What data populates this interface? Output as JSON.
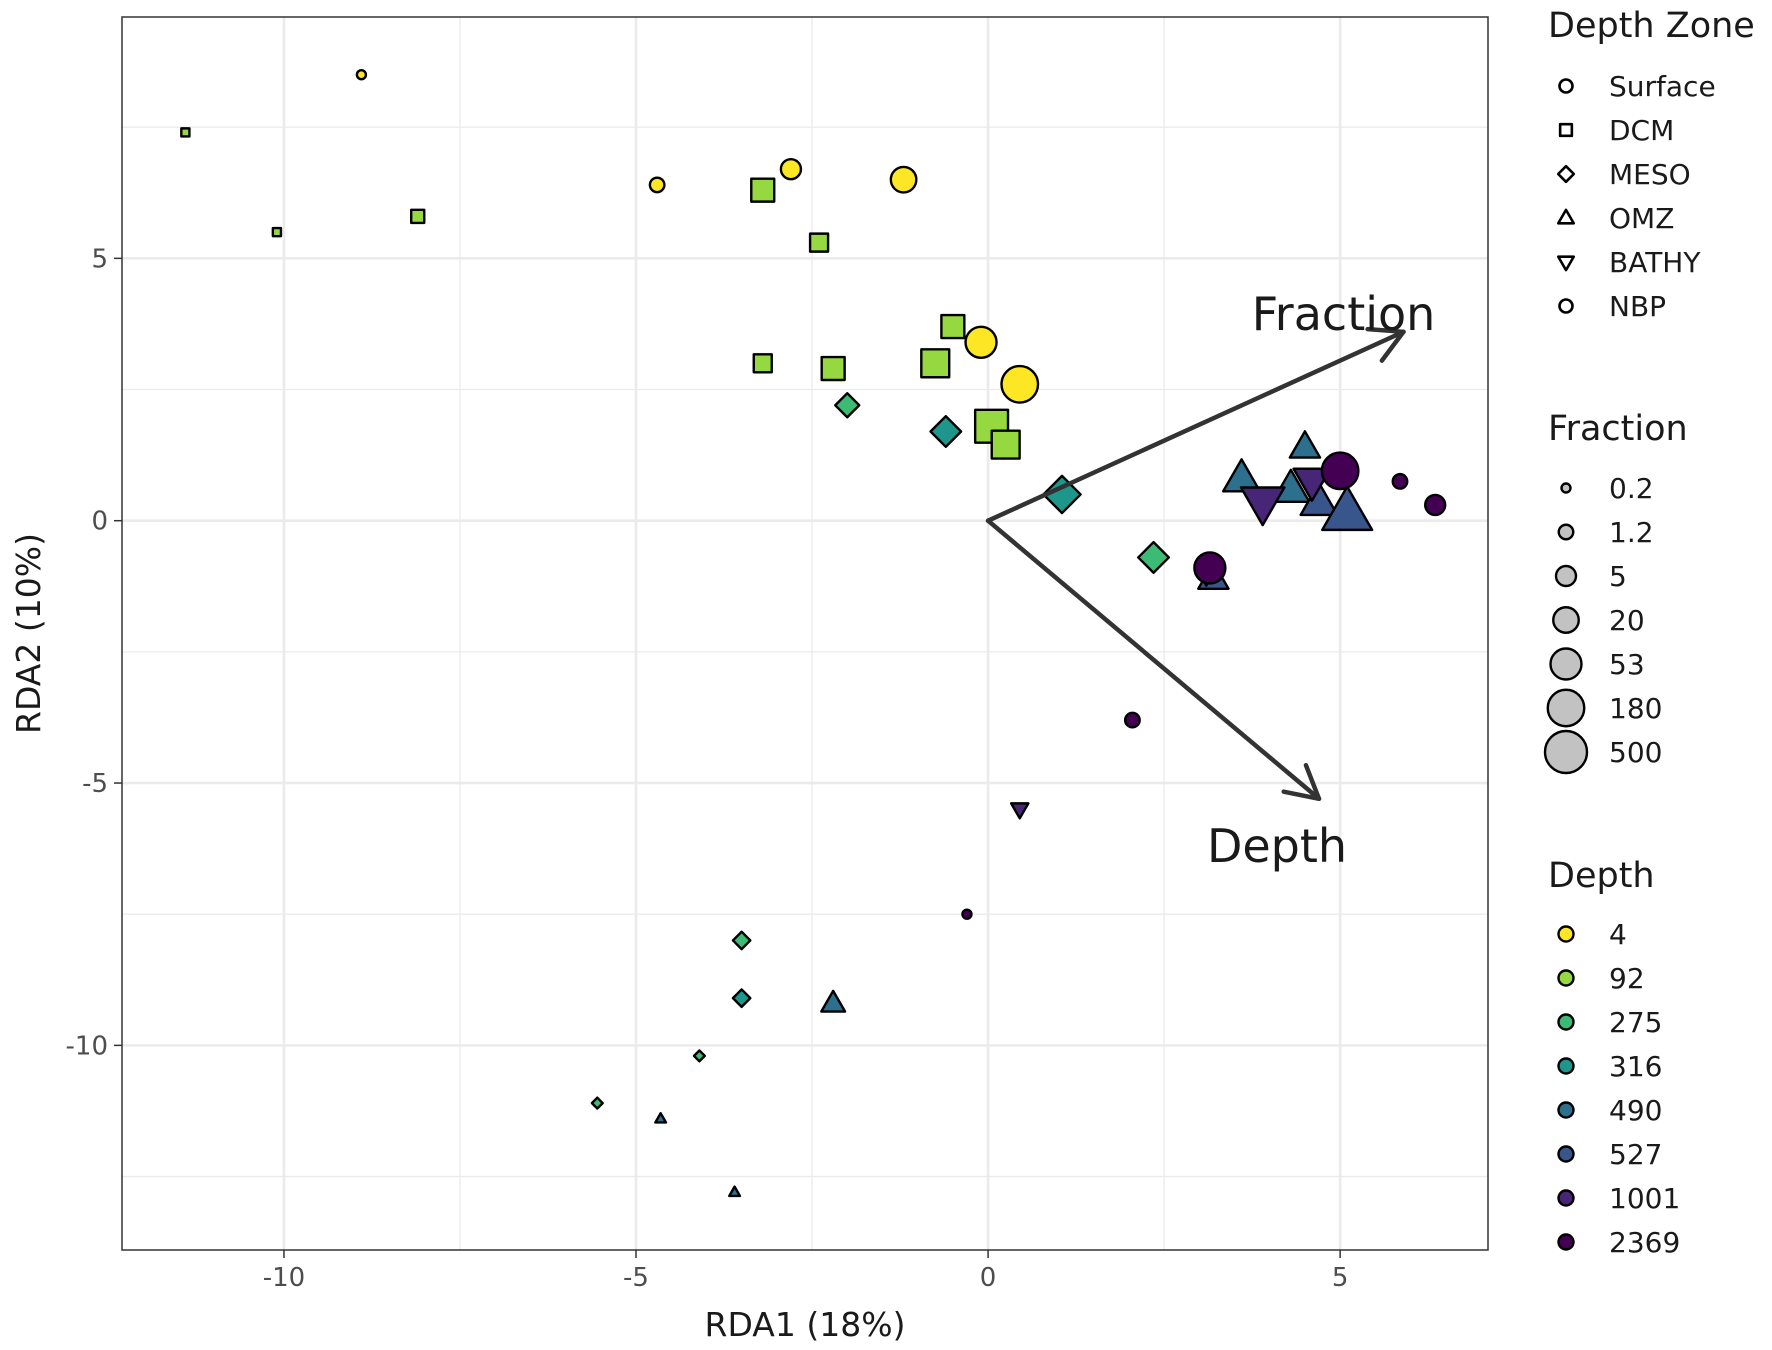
{
  "chart_data": {
    "type": "scatter",
    "title": "",
    "xlabel": "RDA1 (18%)",
    "ylabel": "RDA2 (10%)",
    "xlim": [
      -12.3,
      7.1
    ],
    "ylim": [
      -13.9,
      9.6
    ],
    "xticks": [
      -10,
      -5,
      0,
      5
    ],
    "yticks": [
      5,
      0,
      -5,
      -10
    ],
    "xtick_labels": [
      "-10",
      "-5",
      "0",
      "5"
    ],
    "ytick_labels": [
      "5",
      "0",
      "-5",
      "-10"
    ],
    "grid": true,
    "vectors": [
      {
        "name": "Fraction",
        "x": 5.9,
        "y": 3.6
      },
      {
        "name": "Depth",
        "x": 4.7,
        "y": -5.3
      }
    ],
    "legends": {
      "depth_zone": {
        "title": "Depth Zone",
        "items": [
          {
            "label": "Surface",
            "shape": "circle"
          },
          {
            "label": "DCM",
            "shape": "square"
          },
          {
            "label": "MESO",
            "shape": "diamond"
          },
          {
            "label": "OMZ",
            "shape": "triangle-up"
          },
          {
            "label": "BATHY",
            "shape": "triangle-down"
          },
          {
            "label": "NBP",
            "shape": "circle"
          }
        ]
      },
      "fraction": {
        "title": "Fraction",
        "items": [
          {
            "label": "0.2",
            "size": 0.2
          },
          {
            "label": "1.2",
            "size": 1.2
          },
          {
            "label": "5",
            "size": 5
          },
          {
            "label": "20",
            "size": 20
          },
          {
            "label": "53",
            "size": 53
          },
          {
            "label": "180",
            "size": 180
          },
          {
            "label": "500",
            "size": 500
          }
        ]
      },
      "depth": {
        "title": "Depth",
        "items": [
          {
            "label": "4",
            "value": 4,
            "color": "#FDE725"
          },
          {
            "label": "92",
            "value": 92,
            "color": "#95D840"
          },
          {
            "label": "275",
            "value": 275,
            "color": "#3CBB75"
          },
          {
            "label": "316",
            "value": 316,
            "color": "#1F968B"
          },
          {
            "label": "490",
            "value": 490,
            "color": "#2D708E"
          },
          {
            "label": "527",
            "value": 527,
            "color": "#39568C"
          },
          {
            "label": "1001",
            "value": 1001,
            "color": "#482677"
          },
          {
            "label": "2369",
            "value": 2369,
            "color": "#440154"
          }
        ]
      }
    },
    "points": [
      {
        "x": -8.9,
        "y": 8.5,
        "zone": "Surface",
        "fraction": 0.2,
        "depth": 4
      },
      {
        "x": -4.7,
        "y": 6.4,
        "zone": "Surface",
        "fraction": 1.2,
        "depth": 4
      },
      {
        "x": -2.8,
        "y": 6.7,
        "zone": "Surface",
        "fraction": 5,
        "depth": 4
      },
      {
        "x": -1.2,
        "y": 6.5,
        "zone": "Surface",
        "fraction": 20,
        "depth": 4
      },
      {
        "x": -0.1,
        "y": 3.4,
        "zone": "Surface",
        "fraction": 53,
        "depth": 4
      },
      {
        "x": 0.45,
        "y": 2.6,
        "zone": "Surface",
        "fraction": 180,
        "depth": 4
      },
      {
        "x": -11.4,
        "y": 7.4,
        "zone": "DCM",
        "fraction": 0.2,
        "depth": 92
      },
      {
        "x": -10.1,
        "y": 5.5,
        "zone": "DCM",
        "fraction": 0.2,
        "depth": 92
      },
      {
        "x": -8.1,
        "y": 5.8,
        "zone": "DCM",
        "fraction": 1.2,
        "depth": 92
      },
      {
        "x": -3.2,
        "y": 6.3,
        "zone": "DCM",
        "fraction": 20,
        "depth": 92
      },
      {
        "x": -2.4,
        "y": 5.3,
        "zone": "DCM",
        "fraction": 5,
        "depth": 92
      },
      {
        "x": -3.2,
        "y": 3.0,
        "zone": "DCM",
        "fraction": 5,
        "depth": 92
      },
      {
        "x": -2.2,
        "y": 2.9,
        "zone": "DCM",
        "fraction": 20,
        "depth": 92
      },
      {
        "x": -0.5,
        "y": 3.7,
        "zone": "DCM",
        "fraction": 20,
        "depth": 92
      },
      {
        "x": -0.75,
        "y": 3.0,
        "zone": "DCM",
        "fraction": 53,
        "depth": 92
      },
      {
        "x": 0.05,
        "y": 1.8,
        "zone": "DCM",
        "fraction": 180,
        "depth": 92
      },
      {
        "x": 0.25,
        "y": 1.45,
        "zone": "DCM",
        "fraction": 53,
        "depth": 92
      },
      {
        "x": -2.0,
        "y": 2.2,
        "zone": "MESO",
        "fraction": 5,
        "depth": 275
      },
      {
        "x": -0.6,
        "y": 1.7,
        "zone": "MESO",
        "fraction": 20,
        "depth": 316
      },
      {
        "x": 1.05,
        "y": 0.5,
        "zone": "MESO",
        "fraction": 53,
        "depth": 316
      },
      {
        "x": 2.35,
        "y": -0.7,
        "zone": "MESO",
        "fraction": 20,
        "depth": 275
      },
      {
        "x": -3.5,
        "y": -8.0,
        "zone": "MESO",
        "fraction": 1.2,
        "depth": 275
      },
      {
        "x": -3.5,
        "y": -9.1,
        "zone": "MESO",
        "fraction": 1.2,
        "depth": 316
      },
      {
        "x": -4.1,
        "y": -10.2,
        "zone": "MESO",
        "fraction": 0.2,
        "depth": 275
      },
      {
        "x": -5.55,
        "y": -11.1,
        "zone": "MESO",
        "fraction": 0.2,
        "depth": 275
      },
      {
        "x": -2.2,
        "y": -9.2,
        "zone": "OMZ",
        "fraction": 5,
        "depth": 490
      },
      {
        "x": -4.65,
        "y": -11.4,
        "zone": "OMZ",
        "fraction": 0.2,
        "depth": 490
      },
      {
        "x": -3.6,
        "y": -12.8,
        "zone": "OMZ",
        "fraction": 0.2,
        "depth": 490
      },
      {
        "x": 3.6,
        "y": 0.8,
        "zone": "OMZ",
        "fraction": 53,
        "depth": 490
      },
      {
        "x": 4.5,
        "y": 1.4,
        "zone": "OMZ",
        "fraction": 20,
        "depth": 490
      },
      {
        "x": 4.3,
        "y": 0.6,
        "zone": "OMZ",
        "fraction": 53,
        "depth": 490
      },
      {
        "x": 4.7,
        "y": 0.35,
        "zone": "OMZ",
        "fraction": 53,
        "depth": 527
      },
      {
        "x": 5.1,
        "y": 0.15,
        "zone": "OMZ",
        "fraction": 500,
        "depth": 527
      },
      {
        "x": 3.2,
        "y": -1.1,
        "zone": "OMZ",
        "fraction": 20,
        "depth": 527
      },
      {
        "x": 3.9,
        "y": 0.35,
        "zone": "BATHY",
        "fraction": 180,
        "depth": 1001
      },
      {
        "x": 4.6,
        "y": 0.75,
        "zone": "BATHY",
        "fraction": 53,
        "depth": 1001
      },
      {
        "x": 0.45,
        "y": -5.5,
        "zone": "BATHY",
        "fraction": 1.2,
        "depth": 1001
      },
      {
        "x": 3.1,
        "y": -1.0,
        "zone": "BATHY",
        "fraction": 5,
        "depth": 1001
      },
      {
        "x": 5.0,
        "y": 0.95,
        "zone": "NBP",
        "fraction": 180,
        "depth": 2369
      },
      {
        "x": 3.15,
        "y": -0.9,
        "zone": "NBP",
        "fraction": 53,
        "depth": 2369
      },
      {
        "x": 5.85,
        "y": 0.75,
        "zone": "NBP",
        "fraction": 1.2,
        "depth": 2369
      },
      {
        "x": 6.35,
        "y": 0.3,
        "zone": "NBP",
        "fraction": 5,
        "depth": 2369
      },
      {
        "x": 2.05,
        "y": -3.8,
        "zone": "NBP",
        "fraction": 1.2,
        "depth": 2369
      },
      {
        "x": -0.3,
        "y": -7.5,
        "zone": "NBP",
        "fraction": 0.2,
        "depth": 2369
      }
    ]
  }
}
